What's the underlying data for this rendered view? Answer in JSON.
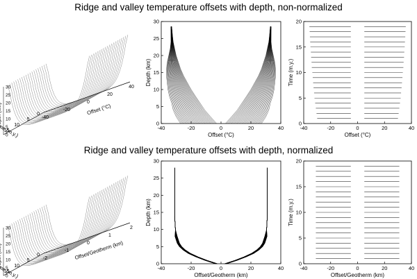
{
  "row_titles": {
    "top": "Ridge and valley temperature offsets with depth, non-normalized",
    "bottom": "Ridge and valley temperature offsets with depth, normalized"
  },
  "chart_data": [
    {
      "id": "top-3d",
      "type": "line",
      "view": "3d-surface",
      "xlabel": "Offset (°C)",
      "ylabel": "Time (m.y.)",
      "zlabel": "Depth (km)",
      "x_ticks": [
        "-40",
        "-20",
        "0",
        "20",
        "40"
      ],
      "y_ticks": [
        "0",
        "5",
        "10",
        "15",
        "20"
      ],
      "z_ticks": [
        "0",
        "5",
        "10",
        "15",
        "20",
        "25",
        "30"
      ],
      "num_curves": 20
    },
    {
      "id": "top-depth",
      "type": "line",
      "xlabel": "Offset (°C)",
      "ylabel": "Depth (km)",
      "xlim": [
        -40,
        40
      ],
      "ylim": [
        0,
        30
      ],
      "x_ticks": [
        "-40",
        "-20",
        "0",
        "20",
        "40"
      ],
      "y_ticks": [
        "0",
        "5",
        "10",
        "15",
        "20",
        "25",
        "30"
      ],
      "curve_depths": [
        0,
        2,
        4,
        6,
        8,
        10,
        12,
        14,
        16,
        18,
        20,
        22,
        24,
        26,
        28.5
      ],
      "series_min_offset": [
        -27,
        -30,
        -32,
        -33,
        -34.5,
        -35.5,
        -36,
        -36.5,
        -36.5,
        -36,
        -35,
        -34,
        -33.5,
        -33.5,
        -33.5
      ],
      "series_max_offset": [
        -3,
        -7,
        -11,
        -14,
        -17,
        -20,
        -22.5,
        -25,
        -27,
        -28.5,
        -30,
        -31,
        -32,
        -32.5,
        -33
      ],
      "note_symmetric": "right lobe mirrors left lobe"
    },
    {
      "id": "top-time",
      "type": "line",
      "xlabel": "Offset (°C)",
      "ylabel": "Time (m.y.)",
      "xlim": [
        -40,
        40
      ],
      "ylim": [
        0,
        20
      ],
      "x_ticks": [
        "-40",
        "-20",
        "0",
        "20",
        "40"
      ],
      "y_ticks": [
        "0",
        "5",
        "10",
        "15",
        "20"
      ],
      "time_steps": [
        1,
        2,
        3,
        4,
        5,
        6,
        7,
        8,
        9,
        10,
        11,
        12,
        13,
        14,
        15,
        16,
        17,
        18,
        19
      ],
      "left_segment_start": [
        -30,
        -30.5,
        -31,
        -31.5,
        -32,
        -32.3,
        -32.7,
        -33,
        -33.3,
        -33.6,
        -34,
        -34.2,
        -34.5,
        -34.7,
        -35,
        -35.2,
        -35.4,
        -35.6,
        -35.8
      ],
      "left_segment_end": -5,
      "right_segment_start": 5
    },
    {
      "id": "bottom-3d",
      "type": "line",
      "view": "3d-surface",
      "xlabel": "Offset/Geotherm (km)",
      "ylabel": "Time (m.y.)",
      "zlabel": "Depth (km)",
      "x_ticks": [
        "-2",
        "-1",
        "0",
        "1",
        "2"
      ],
      "y_ticks": [
        "0",
        "5",
        "10",
        "15",
        "20"
      ],
      "z_ticks": [
        "0",
        "5",
        "10",
        "15",
        "20",
        "25",
        "30"
      ],
      "num_curves": 20
    },
    {
      "id": "bottom-depth",
      "type": "line",
      "xlabel": "Offset/Geotherm (km)",
      "ylabel": "Depth (km)",
      "xlim": [
        -40,
        40
      ],
      "ylim": [
        0,
        30
      ],
      "x_ticks": [
        "-40",
        "-20",
        "0",
        "20",
        "40"
      ],
      "y_ticks": [
        "0",
        "5",
        "10",
        "15",
        "20",
        "25",
        "30"
      ],
      "curve_depths": [
        0,
        1,
        2,
        3,
        4,
        5,
        6,
        8,
        10,
        14,
        20,
        28
      ],
      "series_offset": [
        -3,
        -10,
        -16,
        -21,
        -24.5,
        -27,
        -28.5,
        -30,
        -30.5,
        -31,
        -31,
        -31
      ]
    },
    {
      "id": "bottom-time",
      "type": "line",
      "xlabel": "Offset/Geotherm (km)",
      "ylabel": "Time (m.y.)",
      "xlim": [
        -40,
        40
      ],
      "ylim": [
        0,
        20
      ],
      "x_ticks": [
        "-40",
        "-20",
        "0",
        "20",
        "40"
      ],
      "y_ticks": [
        "0",
        "5",
        "10",
        "15",
        "20"
      ],
      "time_steps": [
        1,
        2,
        3,
        4,
        5,
        6,
        7,
        8,
        9,
        10,
        11,
        12,
        13,
        14,
        15,
        16,
        17,
        18,
        19
      ],
      "left_segment": [
        -31,
        -5
      ],
      "right_segment": [
        5,
        31
      ]
    }
  ]
}
